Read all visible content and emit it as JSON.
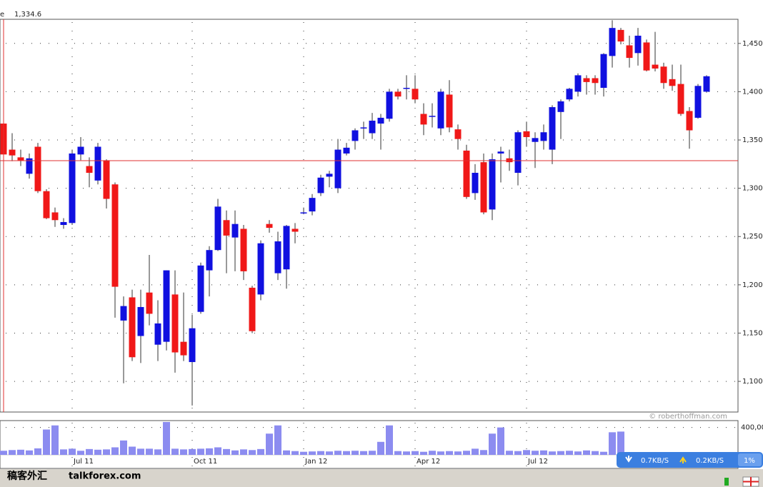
{
  "chart_data": {
    "type": "candlestick",
    "readout_label": "e",
    "readout_value": "1,334.6",
    "annotation": "© roberthoffman.com",
    "categories": [
      null,
      null,
      null,
      null,
      null,
      null,
      null,
      null,
      "Jul 11",
      null,
      null,
      null,
      null,
      null,
      null,
      null,
      null,
      null,
      null,
      null,
      null,
      null,
      "Oct 11",
      null,
      null,
      null,
      null,
      null,
      null,
      null,
      null,
      null,
      null,
      null,
      null,
      "Jan 12",
      null,
      null,
      null,
      null,
      null,
      null,
      null,
      null,
      null,
      null,
      null,
      null,
      "Apr 12",
      null,
      null,
      null,
      null,
      null,
      null,
      null,
      null,
      null,
      null,
      null,
      null,
      "Jul 12",
      null,
      null,
      null,
      null,
      null,
      null,
      null,
      null,
      null,
      null,
      null,
      null,
      null,
      null,
      null,
      null,
      null,
      null,
      null,
      null,
      null
    ],
    "open": [
      1367,
      1340,
      1332,
      1315,
      1343,
      1297,
      1275,
      1262,
      1264,
      1335,
      1323,
      1308,
      1329,
      1304,
      1163,
      1187,
      1147,
      1192,
      1138,
      1141,
      1190,
      1141,
      1120,
      1172,
      1215,
      1236,
      1267,
      1249,
      1258,
      1197,
      1190,
      1263,
      1212,
      1216,
      1258,
      1274,
      1276,
      1295,
      1312,
      1300,
      1336,
      1349,
      1362,
      1357,
      1367,
      1372,
      1400,
      1403,
      1403,
      1377,
      1374,
      1362,
      1397,
      1361,
      1339,
      1295,
      1327,
      1278,
      1336,
      1331,
      1316,
      1359,
      1348,
      1349,
      1340,
      1379,
      1392,
      1400,
      1414,
      1414,
      1404,
      1437,
      1464,
      1448,
      1440,
      1451,
      1428,
      1426,
      1413,
      1408,
      1380,
      1373,
      1400
    ],
    "high": [
      1367,
      1357,
      1340,
      1336,
      1347,
      1299,
      1280,
      1269,
      1340,
      1353,
      1332,
      1347,
      1330,
      1306,
      1188,
      1195,
      1195,
      1231,
      1184,
      1215,
      1215,
      1192,
      1169,
      1223,
      1240,
      1289,
      1277,
      1277,
      1262,
      1199,
      1246,
      1267,
      1255,
      1262,
      1264,
      1280,
      1294,
      1314,
      1318,
      1351,
      1347,
      1362,
      1369,
      1378,
      1377,
      1403,
      1403,
      1417,
      1417,
      1388,
      1388,
      1403,
      1412,
      1366,
      1345,
      1325,
      1336,
      1336,
      1343,
      1340,
      1360,
      1369,
      1358,
      1366,
      1386,
      1392,
      1404,
      1419,
      1417,
      1417,
      1440,
      1474,
      1466,
      1458,
      1466,
      1454,
      1462,
      1430,
      1428,
      1428,
      1384,
      1408,
      1417
    ],
    "low": [
      1335,
      1328,
      1323,
      1310,
      1295,
      1268,
      1260,
      1258,
      1262,
      1329,
      1301,
      1304,
      1279,
      1166,
      1098,
      1121,
      1119,
      1158,
      1121,
      1132,
      1109,
      1121,
      1075,
      1170,
      1188,
      1235,
      1212,
      1214,
      1205,
      1150,
      1184,
      1254,
      1205,
      1196,
      1243,
      1273,
      1272,
      1292,
      1301,
      1295,
      1334,
      1340,
      1351,
      1351,
      1340,
      1369,
      1392,
      1392,
      1388,
      1355,
      1363,
      1355,
      1358,
      1340,
      1289,
      1288,
      1273,
      1267,
      1306,
      1318,
      1303,
      1343,
      1321,
      1340,
      1325,
      1351,
      1390,
      1395,
      1397,
      1397,
      1395,
      1425,
      1449,
      1425,
      1427,
      1421,
      1421,
      1403,
      1401,
      1375,
      1341,
      1372,
      1399
    ],
    "close": [
      1335,
      1334,
      1329,
      1331,
      1297,
      1269,
      1267,
      1265,
      1336,
      1343,
      1316,
      1343,
      1289,
      1198,
      1178,
      1125,
      1177,
      1170,
      1160,
      1215,
      1130,
      1127,
      1155,
      1220,
      1236,
      1281,
      1251,
      1263,
      1214,
      1152,
      1243,
      1259,
      1245,
      1261,
      1255,
      1275,
      1290,
      1311,
      1315,
      1340,
      1342,
      1360,
      1363,
      1370,
      1373,
      1400,
      1395,
      1404,
      1392,
      1366,
      1375,
      1400,
      1363,
      1351,
      1291,
      1316,
      1275,
      1330,
      1338,
      1327,
      1358,
      1353,
      1352,
      1358,
      1384,
      1390,
      1403,
      1417,
      1410,
      1409,
      1439,
      1466,
      1452,
      1435,
      1458,
      1422,
      1424,
      1409,
      1406,
      1377,
      1360,
      1406,
      1416
    ],
    "volume": [
      60000,
      70000,
      75000,
      65000,
      95000,
      370000,
      430000,
      80000,
      90000,
      60000,
      85000,
      75000,
      80000,
      110000,
      210000,
      120000,
      90000,
      90000,
      80000,
      480000,
      90000,
      80000,
      85000,
      90000,
      95000,
      110000,
      85000,
      65000,
      80000,
      70000,
      85000,
      310000,
      430000,
      65000,
      55000,
      45000,
      50000,
      55000,
      50000,
      60000,
      55000,
      60000,
      55000,
      60000,
      190000,
      430000,
      55000,
      50000,
      55000,
      45000,
      60000,
      50000,
      55000,
      50000,
      60000,
      90000,
      70000,
      310000,
      400000,
      60000,
      55000,
      70000,
      60000,
      65000,
      50000,
      55000,
      60000,
      50000,
      65000,
      55000,
      45000,
      330000,
      340000,
      null,
      null,
      null,
      null,
      null,
      null,
      null,
      null,
      null,
      null
    ],
    "up_color": "#1010e0",
    "down_color": "#f01818",
    "volume_color": "#8c8cf0",
    "ylim": [
      1069,
      1475
    ],
    "yticks": [
      {
        "value": 1100,
        "label": "1,100"
      },
      {
        "value": 1150,
        "label": "1,150"
      },
      {
        "value": 1200,
        "label": "1,200"
      },
      {
        "value": 1250,
        "label": "1,250"
      },
      {
        "value": 1300,
        "label": "1,300"
      },
      {
        "value": 1350,
        "label": "1,350"
      },
      {
        "value": 1400,
        "label": "1,400"
      },
      {
        "value": 1450,
        "label": "1,450"
      }
    ],
    "volume_ylim": [
      0,
      490000
    ],
    "volume_yticks": [
      {
        "value": 400000,
        "label": "400,00"
      }
    ],
    "grid": true
  },
  "footer": {
    "logo_cn": "稿客外汇",
    "logo_site": "talkforex.com",
    "download": "0.7KB/S",
    "upload": "0.2KB/S",
    "cpu": "1%"
  }
}
